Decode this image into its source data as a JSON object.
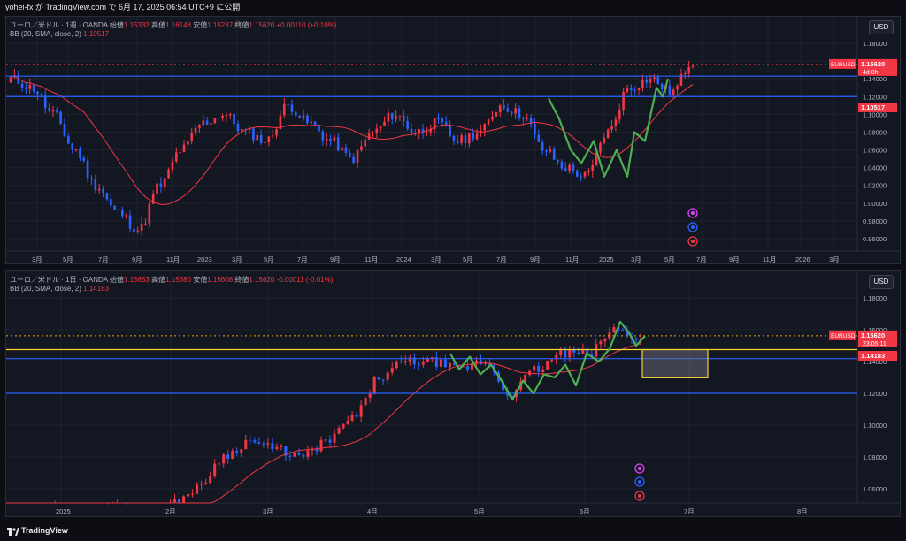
{
  "header": {
    "attribution": "yohei-fx が TradingView.com で 6月 17, 2025 06:54 UTC+9 に公開"
  },
  "colors": {
    "up": "#f23645",
    "down": "#2962ff",
    "bb": "#f23645",
    "swing": "#4caf50",
    "hline": "#2962ff",
    "yline": "#f7d233"
  },
  "pane1": {
    "symbol": "ユーロ／米ドル · 1週 · OANDA",
    "open_label": "始値",
    "open": "1.15332",
    "high_label": "高値",
    "high": "1.16148",
    "low_label": "安値",
    "low": "1.15237",
    "close_label": "終値",
    "close": "1.15620",
    "change": "+0.00110 (+0.10%)",
    "indicator": "BB (20, SMA, close, 2)",
    "indicator_value": "1.10517",
    "currency": "USD",
    "price_labels": [
      "1.18000",
      "1.16000",
      "1.14000",
      "1.12000",
      "1.10000",
      "1.08000",
      "1.06000",
      "1.04000",
      "1.02000",
      "1.00000",
      "0.98000",
      "0.96000"
    ],
    "price_values": [
      1.18,
      1.16,
      1.14,
      1.12,
      1.1,
      1.08,
      1.06,
      1.04,
      1.02,
      1.0,
      0.98,
      0.96
    ],
    "time_labels": [
      "3月",
      "5月",
      "7月",
      "9月",
      "11月",
      "2023",
      "3月",
      "5月",
      "7月",
      "9月",
      "11月",
      "2024",
      "3月",
      "5月",
      "7月",
      "9月",
      "11月",
      "2025",
      "3月",
      "5月",
      "7月",
      "9月",
      "11月",
      "2026",
      "3月"
    ],
    "ticker_tag": "EURUSD",
    "ticker_price": "1.15620",
    "countdown": "4d 0h",
    "bb_tag": "1.10517",
    "hlines": [
      1.143,
      1.12
    ]
  },
  "pane2": {
    "symbol": "ユーロ／米ドル · 1日 · OANDA",
    "open_label": "始値",
    "open": "1.15653",
    "high_label": "高値",
    "high": "1.15680",
    "low_label": "安値",
    "low": "1.15608",
    "close_label": "終値",
    "close": "1.15620",
    "change": "-0.00011 (-0.01%)",
    "indicator": "BB (20, SMA, close, 2)",
    "indicator_value": "1.14183",
    "currency": "USD",
    "price_labels": [
      "1.18000",
      "1.16000",
      "1.14000",
      "1.12000",
      "1.10000",
      "1.08000",
      "1.06000"
    ],
    "price_values": [
      1.18,
      1.16,
      1.14,
      1.12,
      1.1,
      1.08,
      1.06
    ],
    "time_labels": [
      "2025",
      "2月",
      "3月",
      "4月",
      "5月",
      "6月",
      "7月",
      "8月"
    ],
    "ticker_tag": "EURUSD",
    "ticker_price": "1.15620",
    "countdown": "23:05:11",
    "bb_tag": "1.14183",
    "hlines": [
      1.14183,
      1.12
    ],
    "yline": 1.1475,
    "zone": [
      1.1475,
      1.1298
    ]
  },
  "footer": {
    "brand": "TradingView"
  }
}
